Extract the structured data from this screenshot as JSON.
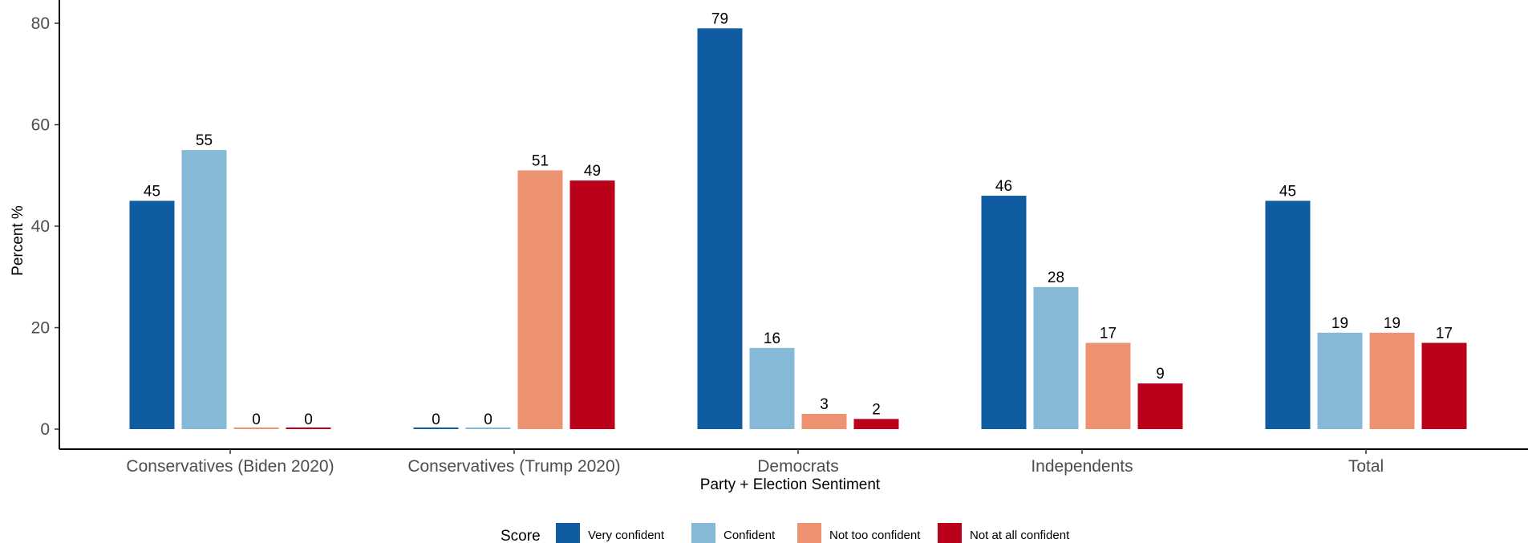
{
  "chart_data": {
    "type": "bar",
    "title": "",
    "xlabel": "Party + Election Sentiment",
    "ylabel": "Percent %",
    "ylim": [
      -4,
      82
    ],
    "yticks": [
      0,
      20,
      40,
      60,
      80
    ],
    "grid": false,
    "legend_position": "bottom",
    "legend_title": "Score",
    "categories": [
      "Conservatives (Biden 2020)",
      "Conservatives (Trump 2020)",
      "Democrats",
      "Independents",
      "Total"
    ],
    "series": [
      {
        "name": "Very confident",
        "color": "#0f5da0",
        "values": [
          45,
          0,
          79,
          46,
          45
        ]
      },
      {
        "name": "Confident",
        "color": "#86b9d8",
        "values": [
          55,
          0,
          16,
          28,
          19
        ]
      },
      {
        "name": "Not too confident",
        "color": "#ed9371",
        "values": [
          0,
          51,
          3,
          17,
          19
        ]
      },
      {
        "name": "Not at all confident",
        "color": "#bb0019",
        "values": [
          0,
          49,
          2,
          9,
          17
        ]
      }
    ]
  }
}
